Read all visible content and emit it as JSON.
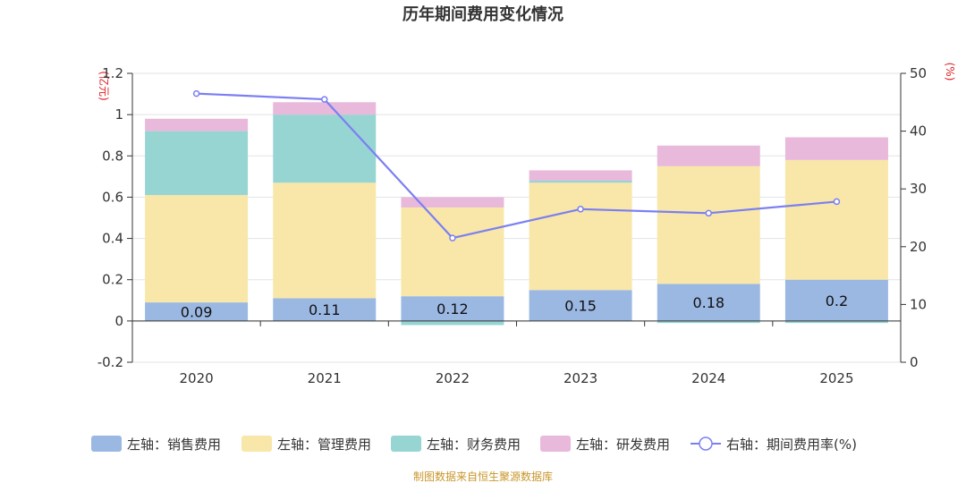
{
  "chart_data": {
    "type": "bar",
    "title": "历年期间费用变化情况",
    "categories": [
      "2020",
      "2021",
      "2022",
      "2023",
      "2024",
      "2025"
    ],
    "left_axis": {
      "unit": "(亿元)",
      "ylim": [
        -0.2,
        1.2
      ],
      "ticks": [
        "1.2",
        "1",
        "0.8",
        "0.6",
        "0.4",
        "0.2",
        "0",
        "-0.2"
      ]
    },
    "right_axis": {
      "unit": "(%)",
      "ylim": [
        0,
        50
      ],
      "ticks": [
        "50",
        "40",
        "30",
        "20",
        "10",
        "0"
      ]
    },
    "grid": true,
    "legend_position": "bottom",
    "series": [
      {
        "name": "左轴：销售费用",
        "type": "bar",
        "color": "#9bb8e3",
        "values": [
          0.09,
          0.11,
          0.12,
          0.15,
          0.18,
          0.2
        ],
        "labels": [
          "0.09",
          "0.11",
          "0.12",
          "0.15",
          "0.18",
          "0.2"
        ]
      },
      {
        "name": "左轴：管理费用",
        "type": "bar",
        "color": "#f8e7a8",
        "values": [
          0.52,
          0.56,
          0.43,
          0.52,
          0.57,
          0.58
        ]
      },
      {
        "name": "左轴：财务费用",
        "type": "bar",
        "color": "#97d5d3",
        "values": [
          0.31,
          0.33,
          -0.02,
          0.01,
          -0.01,
          -0.01
        ]
      },
      {
        "name": "左轴：研发费用",
        "type": "bar",
        "color": "#e8b9da",
        "values": [
          0.06,
          0.06,
          0.05,
          0.05,
          0.1,
          0.11
        ]
      },
      {
        "name": "右轴：期间费用率(%)",
        "type": "line",
        "color": "#7b7ff2",
        "values": [
          46.5,
          45.5,
          21.5,
          26.5,
          25.8,
          27.8
        ]
      }
    ]
  },
  "source": "制图数据来自恒生聚源数据库"
}
